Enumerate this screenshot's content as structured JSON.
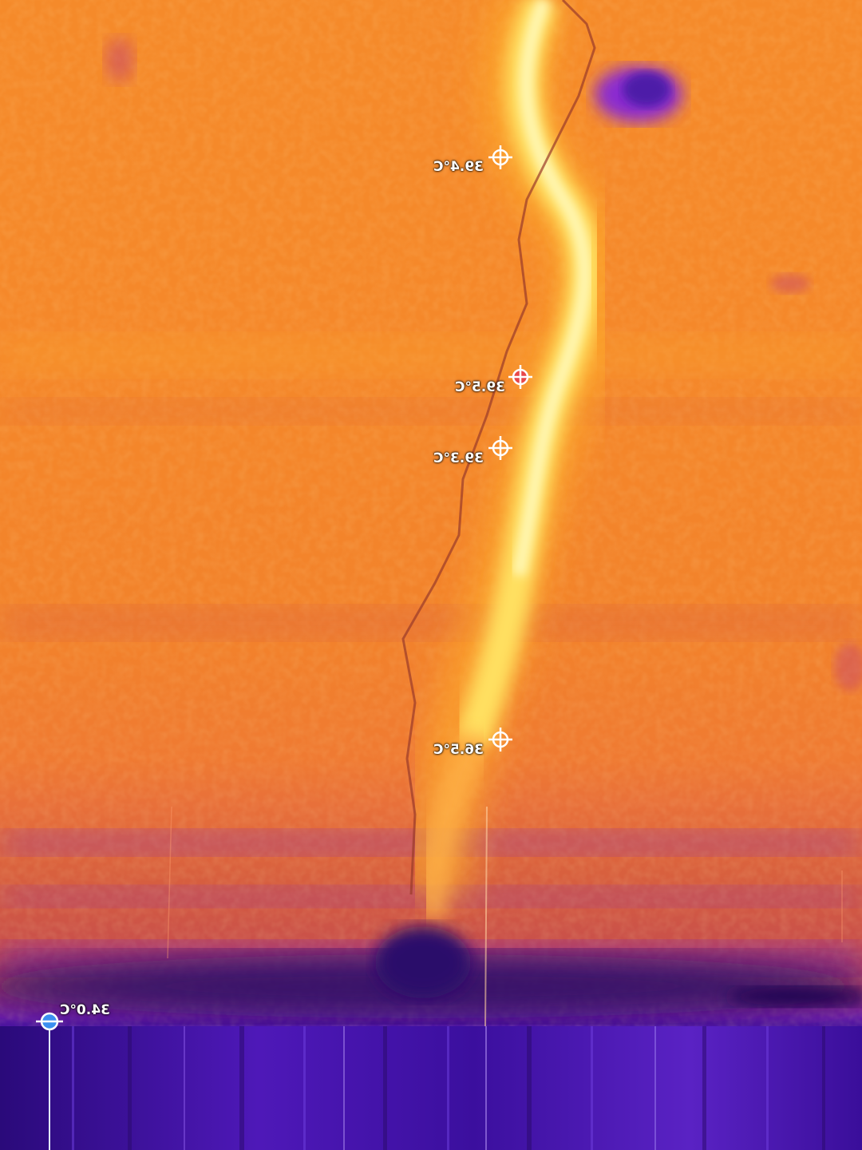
{
  "thermal_image": {
    "palette": "iron",
    "markers": [
      {
        "label": "39.4°C",
        "type": "spot",
        "color": "#ffffff"
      },
      {
        "label": "39.5°C",
        "type": "hot-spot",
        "color": "#e8474a"
      },
      {
        "label": "39.3°C",
        "type": "spot",
        "color": "#ffffff"
      },
      {
        "label": "36.5°C",
        "type": "spot",
        "color": "#ffffff"
      },
      {
        "label": "34.0°C",
        "type": "cold-spot",
        "color": "#3b8ff0"
      }
    ]
  }
}
